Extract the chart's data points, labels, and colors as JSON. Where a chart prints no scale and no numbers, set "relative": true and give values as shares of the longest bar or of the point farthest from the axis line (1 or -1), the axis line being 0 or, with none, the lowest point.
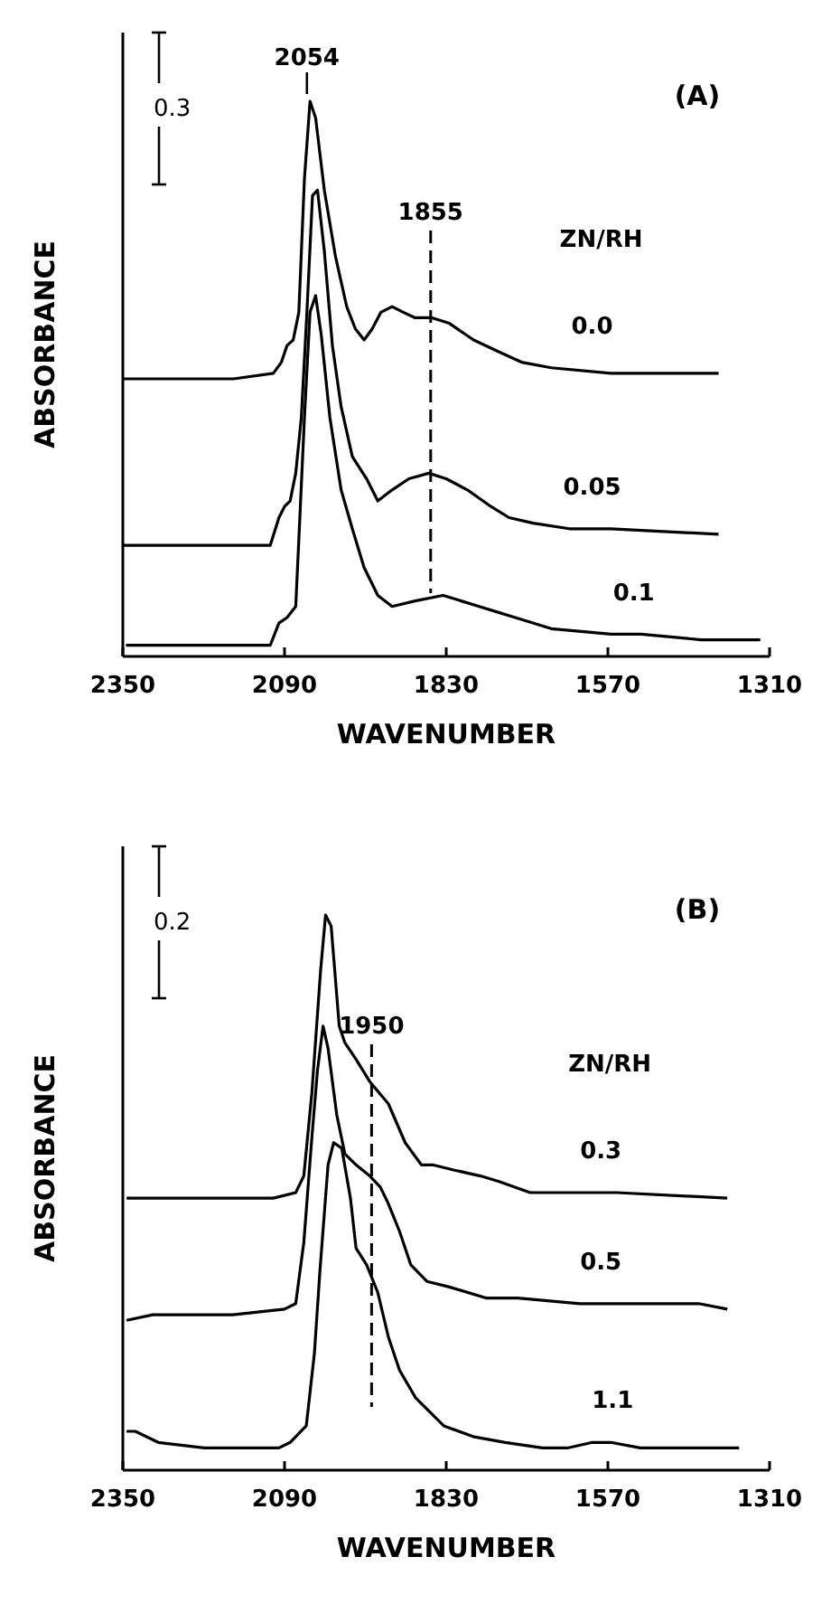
{
  "chart_data": [
    {
      "type": "line",
      "relative": true,
      "xlabel": "WAVENUMBER",
      "ylabel": "ABSORBANCE",
      "legend_title": "ZN/RH",
      "xlim": [
        2350,
        1310
      ],
      "xticks": [
        2350,
        2090,
        1830,
        1570,
        1310
      ],
      "annotations": [
        "(A)",
        "0.3",
        {
          "text": "2054",
          "x": 2054,
          "y": 1.0
        }
      ],
      "ref_lines": [
        {
          "axis": "x",
          "value": 1855,
          "label": "1855",
          "line_style": "dashed"
        }
      ],
      "series": [
        {
          "name": "0.0",
          "color": "#000000",
          "x": [
            2350,
            2263,
            2172,
            2108,
            2095,
            2086,
            2076,
            2067,
            2058,
            2049,
            2040,
            2026,
            2008,
            1990,
            1976,
            1962,
            1949,
            1935,
            1917,
            1899,
            1880,
            1853,
            1825,
            1786,
            1748,
            1709,
            1661,
            1565,
            1392
          ],
          "values": [
            0.5,
            0.5,
            0.5,
            0.51,
            0.53,
            0.56,
            0.57,
            0.62,
            0.86,
            1.0,
            0.97,
            0.84,
            0.72,
            0.63,
            0.59,
            0.57,
            0.59,
            0.62,
            0.63,
            0.62,
            0.61,
            0.61,
            0.6,
            0.57,
            0.55,
            0.53,
            0.52,
            0.51,
            0.51
          ]
        },
        {
          "name": "0.05",
          "color": "#000000",
          "x": [
            2350,
            2113,
            2099,
            2090,
            2081,
            2072,
            2063,
            2054,
            2045,
            2037,
            2026,
            2013,
            1999,
            1981,
            1958,
            1940,
            1917,
            1890,
            1858,
            1830,
            1796,
            1758,
            1729,
            1690,
            1632,
            1565,
            1392
          ],
          "values": [
            0.2,
            0.2,
            0.25,
            0.27,
            0.28,
            0.33,
            0.43,
            0.62,
            0.83,
            0.84,
            0.73,
            0.56,
            0.45,
            0.36,
            0.32,
            0.28,
            0.3,
            0.32,
            0.33,
            0.32,
            0.3,
            0.27,
            0.25,
            0.24,
            0.23,
            0.23,
            0.22
          ]
        },
        {
          "name": "0.1",
          "color": "#000000",
          "x": [
            2345,
            2113,
            2099,
            2086,
            2072,
            2067,
            2058,
            2049,
            2040,
            2031,
            2017,
            1999,
            1981,
            1962,
            1940,
            1917,
            1880,
            1835,
            1806,
            1777,
            1748,
            1719,
            1661,
            1565,
            1517,
            1420,
            1325
          ],
          "values": [
            0.02,
            0.02,
            0.06,
            0.07,
            0.09,
            0.21,
            0.43,
            0.62,
            0.65,
            0.58,
            0.43,
            0.3,
            0.23,
            0.16,
            0.11,
            0.09,
            0.1,
            0.11,
            0.1,
            0.09,
            0.08,
            0.07,
            0.05,
            0.04,
            0.04,
            0.03,
            0.03
          ]
        }
      ]
    },
    {
      "type": "line",
      "relative": true,
      "xlabel": "WAVENUMBER",
      "ylabel": "ABSORBANCE",
      "legend_title": "ZN/RH",
      "xlim": [
        2350,
        1310
      ],
      "xticks": [
        2350,
        2090,
        1830,
        1570,
        1310
      ],
      "annotations": [
        "(B)",
        "0.2"
      ],
      "ref_lines": [
        {
          "axis": "x",
          "value": 1950,
          "label": "1950",
          "line_style": "dashed"
        }
      ],
      "series": [
        {
          "name": "0.3",
          "color": "#000000",
          "x": [
            2344,
            2108,
            2072,
            2059,
            2046,
            2032,
            2024,
            2015,
            2002,
            1993,
            1975,
            1953,
            1923,
            1896,
            1870,
            1852,
            1815,
            1775,
            1745,
            1695,
            1635,
            1595,
            1556,
            1378
          ],
          "values": [
            0.49,
            0.49,
            0.5,
            0.53,
            0.68,
            0.9,
            1.0,
            0.98,
            0.8,
            0.77,
            0.74,
            0.7,
            0.66,
            0.59,
            0.55,
            0.55,
            0.54,
            0.53,
            0.52,
            0.5,
            0.5,
            0.5,
            0.5,
            0.49
          ]
        },
        {
          "name": "0.5",
          "color": "#000000",
          "x": [
            2344,
            2302,
            2265,
            2173,
            2090,
            2072,
            2059,
            2046,
            2037,
            2028,
            2020,
            2006,
            1993,
            1975,
            1953,
            1936,
            1923,
            1905,
            1887,
            1861,
            1825,
            1765,
            1715,
            1615,
            1518,
            1424,
            1378
          ],
          "values": [
            0.27,
            0.28,
            0.28,
            0.28,
            0.29,
            0.3,
            0.41,
            0.6,
            0.72,
            0.8,
            0.76,
            0.64,
            0.57,
            0.55,
            0.53,
            0.51,
            0.48,
            0.43,
            0.37,
            0.34,
            0.33,
            0.31,
            0.31,
            0.3,
            0.3,
            0.3,
            0.29
          ]
        },
        {
          "name": "1.1",
          "color": "#000000",
          "x": [
            2344,
            2330,
            2293,
            2219,
            2099,
            2081,
            2055,
            2042,
            2033,
            2020,
            2011,
            1998,
            1984,
            1975,
            1958,
            1940,
            1923,
            1905,
            1879,
            1834,
            1785,
            1735,
            1675,
            1635,
            1595,
            1565,
            1518,
            1359
          ],
          "values": [
            0.07,
            0.07,
            0.05,
            0.04,
            0.04,
            0.05,
            0.08,
            0.21,
            0.36,
            0.55,
            0.59,
            0.58,
            0.49,
            0.4,
            0.37,
            0.32,
            0.24,
            0.18,
            0.13,
            0.08,
            0.06,
            0.05,
            0.04,
            0.04,
            0.05,
            0.05,
            0.04,
            0.04
          ]
        }
      ]
    }
  ]
}
